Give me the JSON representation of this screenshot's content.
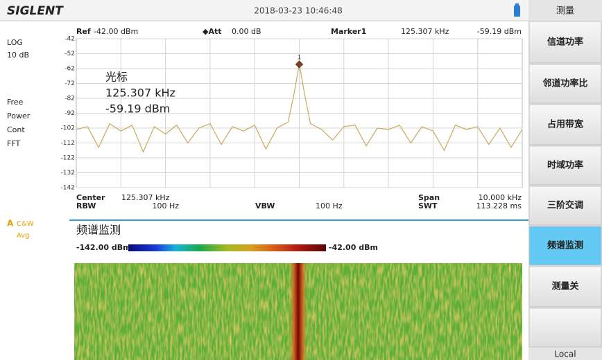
{
  "header": {
    "logo": "SIGLENT",
    "datetime": "2018-03-23  10:46:48"
  },
  "left_panel": {
    "scale_type": "LOG",
    "scale_div": "10 dB",
    "items": [
      "Free",
      "Power",
      "Cont",
      "FFT"
    ],
    "trace_flag": "A",
    "trace_mode": "C&W",
    "trace_avg": "Avg"
  },
  "measure_bar": {
    "ref_label": "Ref",
    "ref_value": "-42.00 dBm",
    "att_label": "◆Att",
    "att_value": "0.00 dB",
    "marker_name": "Marker1",
    "marker_freq": "125.307 kHz",
    "marker_level": "-59.19 dBm"
  },
  "chart_data": {
    "type": "line",
    "color": "#c9a95c",
    "x": [
      120.307,
      120.557,
      120.807,
      121.057,
      121.307,
      121.557,
      121.807,
      122.057,
      122.307,
      122.557,
      122.807,
      123.057,
      123.307,
      123.557,
      123.807,
      124.057,
      124.307,
      124.557,
      124.807,
      125.057,
      125.182,
      125.307,
      125.432,
      125.557,
      125.807,
      126.057,
      126.307,
      126.557,
      126.807,
      127.057,
      127.307,
      127.557,
      127.807,
      128.057,
      128.307,
      128.557,
      128.807,
      129.057,
      129.307,
      129.557,
      129.807,
      130.057,
      130.307
    ],
    "values": [
      -103,
      -101,
      -115,
      -99,
      -104,
      -100,
      -118,
      -101,
      -106,
      -100,
      -112,
      -102,
      -99,
      -113,
      -101,
      -104,
      -100,
      -116,
      -102,
      -98,
      -80,
      -59.19,
      -80,
      -99,
      -103,
      -110,
      -101,
      -100,
      -114,
      -102,
      -103,
      -100,
      -112,
      -101,
      -104,
      -117,
      -100,
      -103,
      -101,
      -113,
      -102,
      -115,
      -103
    ],
    "xlim": [
      120.307,
      130.307
    ],
    "ylim": [
      -142,
      -42
    ],
    "yticks": [
      -42,
      -52,
      -62,
      -72,
      -82,
      -92,
      -102,
      -112,
      -122,
      -132,
      -142
    ],
    "grid": true,
    "marker_label": "1",
    "annotation": [
      "光标",
      "125.307 kHz",
      "-59.19 dBm"
    ]
  },
  "footer": {
    "center_label": "Center",
    "center_value": "125.307 kHz",
    "span_label": "Span",
    "span_value": "10.000 kHz",
    "rbw_label": "RBW",
    "rbw_value": "100 Hz",
    "vbw_label": "VBW",
    "vbw_value": "100 Hz",
    "swt_label": "SWT",
    "swt_value": "113.228 ms"
  },
  "monitor": {
    "title": "频谱监测",
    "min_label": "-142.00 dBm",
    "max_label": "-42.00 dBm"
  },
  "softkeys": {
    "title": "测量",
    "items": [
      "信道功率",
      "邻道功率比",
      "占用带宽",
      "时域功率",
      "三阶交调",
      "频谱监测",
      "测量关"
    ],
    "local": "Local"
  }
}
